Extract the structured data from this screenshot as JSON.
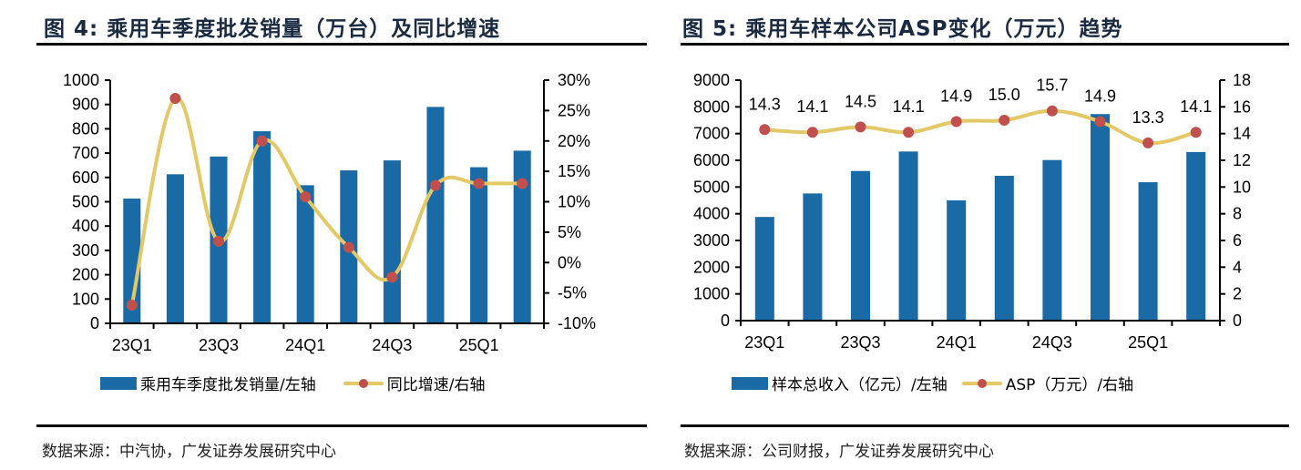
{
  "colors": {
    "bar": "#1a6aa5",
    "line": "#e3c867",
    "marker": "#c0504d"
  },
  "figures": [
    {
      "title": "图  4:  乘用车季度批发销量（万台）及同比增速",
      "source": "数据来源：中汽协，广发证券发展研究中心",
      "legend": [
        {
          "label": "乘用车季度批发销量/左轴",
          "type": "bar"
        },
        {
          "label": "同比增速/右轴",
          "type": "line"
        }
      ]
    },
    {
      "title": "图  5:  乘用车样本公司ASP变化（万元）趋势",
      "source": "数据来源：公司财报，广发证券发展研究中心",
      "legend": [
        {
          "label": "样本总收入（亿元）/左轴",
          "type": "bar"
        },
        {
          "label": "ASP（万元）/右轴",
          "type": "line"
        }
      ]
    }
  ],
  "chart_data": [
    {
      "type": "bar",
      "title": "乘用车季度批发销量（万台）及同比增速",
      "categories": [
        "23Q1",
        "23Q2",
        "23Q3",
        "23Q4",
        "24Q1",
        "24Q2",
        "24Q3",
        "24Q4",
        "25Q1",
        "25Q2"
      ],
      "x_tick_labels": [
        "23Q1",
        "",
        "23Q3",
        "",
        "24Q1",
        "",
        "24Q3",
        "",
        "25Q1",
        ""
      ],
      "series": [
        {
          "name": "乘用车季度批发销量/左轴",
          "type": "bar",
          "axis": "left",
          "values": [
            513,
            613,
            686,
            790,
            568,
            629,
            670,
            890,
            642,
            710
          ]
        },
        {
          "name": "同比增速/右轴",
          "type": "line",
          "smooth": true,
          "axis": "right",
          "values": [
            -7.0,
            27.0,
            3.5,
            20.0,
            10.8,
            2.5,
            -2.4,
            12.7,
            13.0,
            13.0
          ]
        }
      ],
      "ylim_left": [
        0,
        1000
      ],
      "yticks_left": [
        "0",
        "100",
        "200",
        "300",
        "400",
        "500",
        "600",
        "700",
        "800",
        "900",
        "1000"
      ],
      "ylim_right": [
        -10,
        30
      ],
      "yticks_right": [
        "-10%",
        "-5%",
        "0%",
        "5%",
        "10%",
        "15%",
        "20%",
        "25%",
        "30%"
      ],
      "legend_position": "bottom",
      "grid": false
    },
    {
      "type": "bar",
      "title": "乘用车样本公司ASP变化（万元）趋势",
      "categories": [
        "23Q1",
        "23Q2",
        "23Q3",
        "23Q4",
        "24Q1",
        "24Q2",
        "24Q3",
        "24Q4",
        "25Q1",
        "25Q2"
      ],
      "x_tick_labels": [
        "23Q1",
        "",
        "23Q3",
        "",
        "24Q1",
        "",
        "24Q3",
        "",
        "25Q1",
        ""
      ],
      "series": [
        {
          "name": "样本总收入（亿元）/左轴",
          "type": "bar",
          "axis": "left",
          "values": [
            3880,
            4760,
            5600,
            6330,
            4500,
            5420,
            6010,
            7730,
            5180,
            6310
          ]
        },
        {
          "name": "ASP（万元）/右轴",
          "type": "line",
          "smooth": true,
          "axis": "right",
          "values": [
            14.3,
            14.1,
            14.5,
            14.1,
            14.9,
            15.0,
            15.7,
            14.9,
            13.3,
            14.1
          ],
          "data_labels": [
            "14.3",
            "14.1",
            "14.5",
            "14.1",
            "14.9",
            "15.0",
            "15.7",
            "14.9",
            "13.3",
            "14.1"
          ]
        }
      ],
      "ylim_left": [
        0,
        9000
      ],
      "yticks_left": [
        "0",
        "1000",
        "2000",
        "3000",
        "4000",
        "5000",
        "6000",
        "7000",
        "8000",
        "9000"
      ],
      "ylim_right": [
        0,
        18
      ],
      "yticks_right": [
        "0",
        "2",
        "4",
        "6",
        "8",
        "10",
        "12",
        "14",
        "16",
        "18"
      ],
      "legend_position": "bottom",
      "grid": false
    }
  ]
}
